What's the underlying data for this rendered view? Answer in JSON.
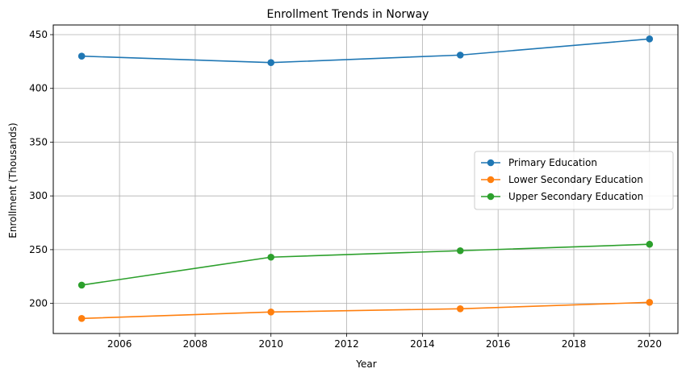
{
  "chart_data": {
    "type": "line",
    "title": "Enrollment Trends in Norway",
    "xlabel": "Year",
    "ylabel": "Enrollment (Thousands)",
    "x": [
      2005,
      2010,
      2015,
      2020
    ],
    "xlim": [
      2004.25,
      2020.75
    ],
    "ylim": [
      172,
      459
    ],
    "xticks": [
      2006,
      2008,
      2010,
      2012,
      2014,
      2016,
      2018,
      2020
    ],
    "yticks": [
      200,
      250,
      300,
      350,
      400,
      450
    ],
    "grid": true,
    "legend_position": "center-right",
    "series": [
      {
        "name": "Primary Education",
        "color": "#1f77b4",
        "values": [
          430,
          424,
          431,
          446
        ]
      },
      {
        "name": "Lower Secondary Education",
        "color": "#ff7f0e",
        "values": [
          186,
          192,
          195,
          201
        ]
      },
      {
        "name": "Upper Secondary Education",
        "color": "#2ca02c",
        "values": [
          217,
          243,
          249,
          255
        ]
      }
    ]
  }
}
